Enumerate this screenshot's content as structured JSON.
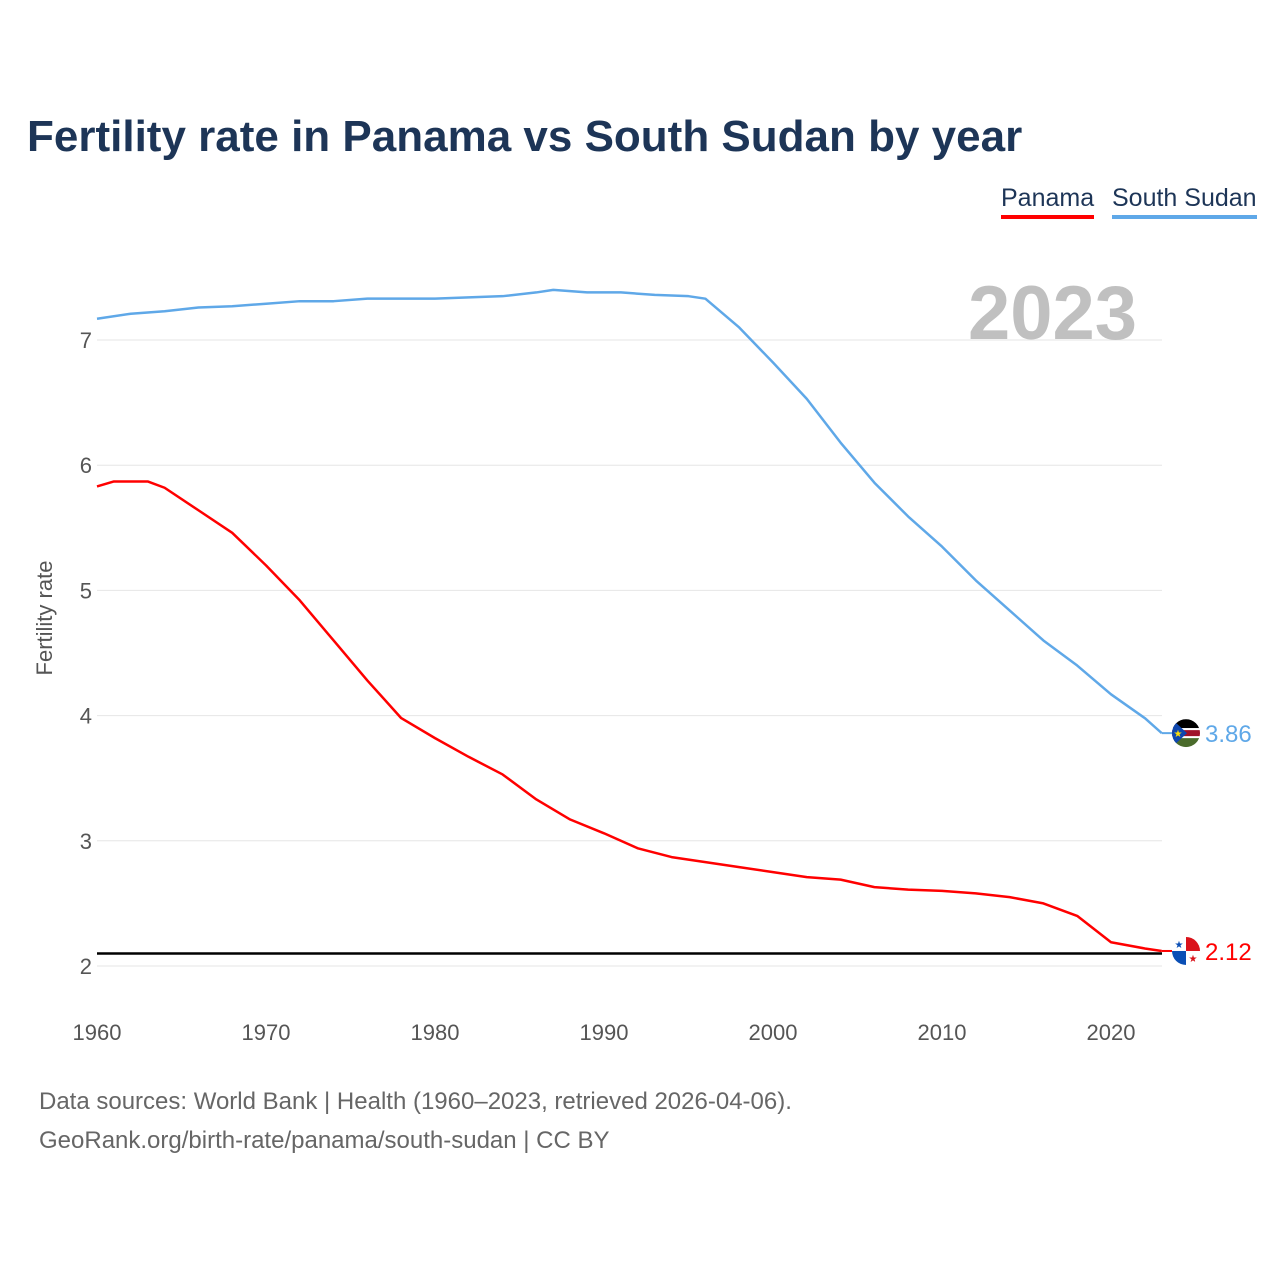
{
  "title": "Fertility rate in Panama vs South Sudan by year",
  "year_badge": "2023",
  "sources": {
    "line1": "Data sources: World Bank | Health (1960–2023, retrieved 2026-04-06).",
    "line2": "GeoRank.org/birth-rate/panama/south-sudan | CC BY"
  },
  "chart_data": {
    "type": "line",
    "title": "Fertility rate in Panama vs South Sudan by year",
    "xlabel": "",
    "ylabel": "Fertility rate",
    "xlim": [
      1960,
      2023
    ],
    "ylim": [
      2,
      7.4
    ],
    "xticks": [
      1960,
      1970,
      1980,
      1990,
      2000,
      2010,
      2020
    ],
    "yticks": [
      2,
      3,
      4,
      5,
      6,
      7
    ],
    "grid": true,
    "legend_position": "top-right",
    "reference_line": {
      "y": 2.1,
      "color": "#000000"
    },
    "series": [
      {
        "name": "Panama",
        "color": "#ff0000",
        "end_label": "2.12",
        "flag": "panama-flag",
        "x": [
          1960,
          1961,
          1963,
          1964,
          1966,
          1968,
          1970,
          1972,
          1974,
          1976,
          1978,
          1980,
          1982,
          1984,
          1986,
          1988,
          1990,
          1992,
          1994,
          1996,
          1998,
          2000,
          2002,
          2004,
          2006,
          2008,
          2010,
          2012,
          2014,
          2016,
          2018,
          2020,
          2022,
          2023
        ],
        "y": [
          5.83,
          5.87,
          5.87,
          5.82,
          5.64,
          5.46,
          5.2,
          4.92,
          4.6,
          4.28,
          3.98,
          3.82,
          3.67,
          3.53,
          3.33,
          3.17,
          3.06,
          2.94,
          2.87,
          2.83,
          2.79,
          2.75,
          2.71,
          2.69,
          2.63,
          2.61,
          2.6,
          2.58,
          2.55,
          2.5,
          2.4,
          2.19,
          2.14,
          2.12
        ]
      },
      {
        "name": "South Sudan",
        "color": "#5fa8e8",
        "end_label": "3.86",
        "flag": "south-sudan-flag",
        "x": [
          1960,
          1962,
          1964,
          1966,
          1968,
          1970,
          1972,
          1974,
          1976,
          1978,
          1980,
          1982,
          1984,
          1986,
          1987,
          1989,
          1991,
          1993,
          1995,
          1996,
          1998,
          2000,
          2002,
          2004,
          2006,
          2008,
          2010,
          2012,
          2014,
          2016,
          2018,
          2020,
          2022,
          2023
        ],
        "y": [
          7.17,
          7.21,
          7.23,
          7.26,
          7.27,
          7.29,
          7.31,
          7.31,
          7.33,
          7.33,
          7.33,
          7.34,
          7.35,
          7.38,
          7.4,
          7.38,
          7.38,
          7.36,
          7.35,
          7.33,
          7.1,
          6.82,
          6.53,
          6.18,
          5.86,
          5.59,
          5.35,
          5.08,
          4.84,
          4.6,
          4.4,
          4.17,
          3.98,
          3.86
        ]
      }
    ]
  }
}
